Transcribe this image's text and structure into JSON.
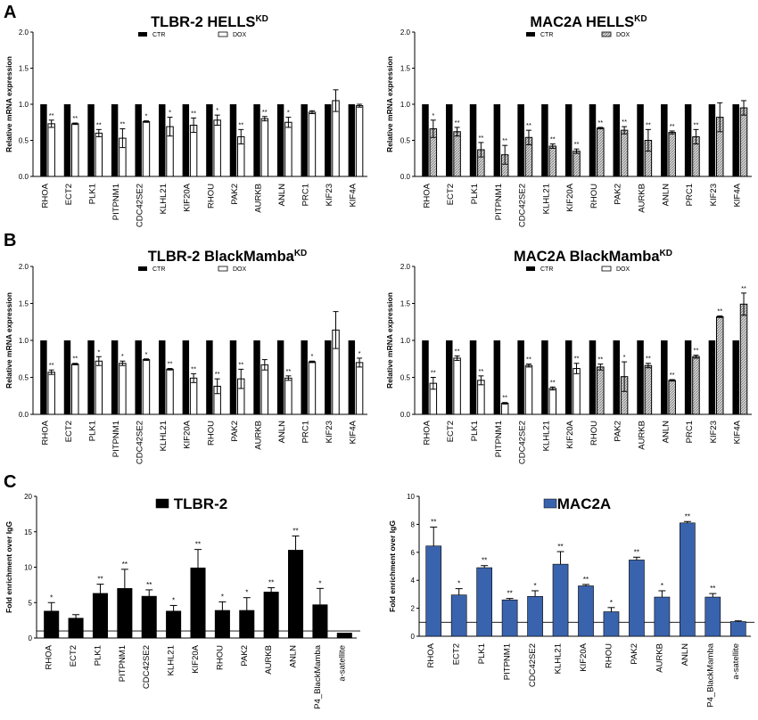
{
  "panel_letters": [
    "A",
    "B",
    "C"
  ],
  "chart_data": [
    {
      "id": "tlbr2_hells",
      "type": "bar",
      "title": "TLBR-2 HELLS",
      "title_sup": "KD",
      "ylabel": "Relative mRNA expression",
      "ylim": [
        0,
        2.0
      ],
      "yticks": [
        "0.0",
        "0.5",
        "1.0",
        "1.5",
        "2.0"
      ],
      "legend": [
        "CTR",
        "DOX"
      ],
      "categories": [
        "RHOA",
        "ECT2",
        "PLK1",
        "PITPNM1",
        "CDC42SE2",
        "KLHL21",
        "KIF20A",
        "RHOU",
        "PAK2",
        "AURKB",
        "ANLN",
        "PRC1",
        "KIF23",
        "KIF4A"
      ],
      "series": [
        {
          "name": "CTR",
          "values": [
            1,
            1,
            1,
            1,
            1,
            1,
            1,
            1,
            1,
            1,
            1,
            1,
            1,
            1
          ]
        },
        {
          "name": "DOX",
          "values": [
            0.73,
            0.73,
            0.6,
            0.53,
            0.76,
            0.69,
            0.71,
            0.78,
            0.55,
            0.8,
            0.75,
            0.89,
            1.05,
            0.98
          ],
          "errors": [
            0.05,
            0.01,
            0.05,
            0.13,
            0.01,
            0.13,
            0.1,
            0.07,
            0.1,
            0.03,
            0.07,
            0.02,
            0.15,
            0.02
          ]
        }
      ],
      "significance": [
        "**",
        "**",
        "**",
        "**",
        "*",
        "*",
        "**",
        "*",
        "**",
        "**",
        "*",
        "",
        "",
        ""
      ]
    },
    {
      "id": "mac2a_hells",
      "type": "bar",
      "title": "MAC2A HELLS",
      "title_sup": "KD",
      "ylabel": "Relative mRNA expression",
      "ylim": [
        0,
        2.0
      ],
      "yticks": [
        "0.0",
        "0.5",
        "1.0",
        "1.5",
        "2.0"
      ],
      "legend": [
        "CTR",
        "DOX"
      ],
      "categories": [
        "RHOA",
        "ECT2",
        "PLK1",
        "PITPNM1",
        "CDC42SE2",
        "KLHL21",
        "KIF20A",
        "RHOU",
        "PAK2",
        "AURKB",
        "ANLN",
        "PRC1",
        "KIF23",
        "KIF4A"
      ],
      "series": [
        {
          "name": "CTR",
          "values": [
            1,
            1,
            1,
            1,
            1,
            1,
            1,
            1,
            1,
            1,
            1,
            1,
            1,
            1
          ]
        },
        {
          "name": "DOX",
          "values": [
            0.66,
            0.62,
            0.37,
            0.3,
            0.54,
            0.42,
            0.35,
            0.67,
            0.64,
            0.5,
            0.61,
            0.55,
            0.82,
            0.95
          ],
          "errors": [
            0.12,
            0.06,
            0.1,
            0.13,
            0.1,
            0.03,
            0.03,
            0.01,
            0.05,
            0.15,
            0.02,
            0.1,
            0.2,
            0.1
          ]
        }
      ],
      "significance": [
        "*",
        "**",
        "**",
        "**",
        "**",
        "**",
        "**",
        "**",
        "**",
        "**",
        "**",
        "**",
        "",
        ""
      ]
    },
    {
      "id": "tlbr2_blackmamba",
      "type": "bar",
      "title": "TLBR-2 BlackMamba",
      "title_sup": "KD",
      "ylabel": "Relative mRNA expression",
      "ylim": [
        0,
        2.0
      ],
      "yticks": [
        "0.0",
        "0.5",
        "1.0",
        "1.5",
        "2.0"
      ],
      "legend": [
        "CTR",
        "DOX"
      ],
      "categories": [
        "RHOA",
        "ECT2",
        "PLK1",
        "PITPNM1",
        "CDC42SE2",
        "KLHL21",
        "KIF20A",
        "RHOU",
        "PAK2",
        "AURKB",
        "ANLN",
        "PRC1",
        "KIF23",
        "KIF4A"
      ],
      "series": [
        {
          "name": "CTR",
          "values": [
            1,
            1,
            1,
            1,
            1,
            1,
            1,
            1,
            1,
            1,
            1,
            1,
            1,
            1
          ]
        },
        {
          "name": "DOX",
          "values": [
            0.57,
            0.68,
            0.72,
            0.69,
            0.74,
            0.61,
            0.49,
            0.38,
            0.48,
            0.67,
            0.49,
            0.71,
            1.14,
            0.7
          ],
          "errors": [
            0.03,
            0.01,
            0.06,
            0.03,
            0.01,
            0.01,
            0.06,
            0.1,
            0.13,
            0.07,
            0.03,
            0.01,
            0.25,
            0.06
          ]
        }
      ],
      "significance": [
        "**",
        "**",
        "*",
        "*",
        "*",
        "**",
        "**",
        "**",
        "**",
        "",
        "**",
        "*",
        "",
        "*"
      ]
    },
    {
      "id": "mac2a_blackmamba",
      "type": "bar",
      "title": "MAC2A BlackMamba",
      "title_sup": "KD",
      "ylabel": "Relative mRNA expression",
      "ylim": [
        0,
        2.0
      ],
      "yticks": [
        "0.0",
        "0.5",
        "1.0",
        "1.5",
        "2.0"
      ],
      "legend": [
        "CTR",
        "DOX"
      ],
      "categories": [
        "RHOA",
        "ECT2",
        "PLK1",
        "PITPNM1",
        "CDC42SE2",
        "KLHL21",
        "KIF20A",
        "RHOU",
        "PAK2",
        "AURKB",
        "ANLN",
        "PRC1",
        "KIF23",
        "KIF4A"
      ],
      "series": [
        {
          "name": "CTR",
          "values": [
            1,
            1,
            1,
            1,
            1,
            1,
            1,
            1,
            1,
            1,
            1,
            1,
            1,
            1
          ]
        },
        {
          "name": "DOX",
          "values": [
            0.42,
            0.76,
            0.46,
            0.15,
            0.66,
            0.35,
            0.62,
            0.64,
            0.51,
            0.66,
            0.46,
            0.78,
            1.32,
            1.49
          ],
          "errors": [
            0.08,
            0.03,
            0.06,
            0.01,
            0.02,
            0.02,
            0.07,
            0.04,
            0.2,
            0.03,
            0.01,
            0.02,
            0.01,
            0.15
          ]
        }
      ],
      "significance": [
        "**",
        "**",
        "**",
        "**",
        "**",
        "**",
        "**",
        "**",
        "*",
        "**",
        "**",
        "**",
        "**",
        "**"
      ]
    },
    {
      "id": "tlbr2_chip",
      "type": "bar",
      "title": "TLBR-2",
      "ylabel": "Fold enrichment over IgG",
      "ylim": [
        0,
        20
      ],
      "yticks": [
        "0",
        "5",
        "10",
        "15",
        "20"
      ],
      "reference_line": 1,
      "categories": [
        "RHOA",
        "ECT2",
        "PLK1",
        "PITPNM1",
        "CDC42SE2",
        "KLHL21",
        "KIF20A",
        "RHOU",
        "PAK2",
        "AURKB",
        "ANLN",
        "P4_BlackMamba",
        "a-satellite"
      ],
      "series": [
        {
          "name": "TLBR-2",
          "values": [
            3.8,
            2.8,
            6.3,
            7.0,
            5.9,
            3.8,
            9.9,
            3.9,
            3.9,
            6.5,
            12.4,
            4.7,
            0.7
          ],
          "errors": [
            1.2,
            0.5,
            1.3,
            2.7,
            0.9,
            0.8,
            2.6,
            1.2,
            1.8,
            0.6,
            2.0,
            2.3,
            0
          ]
        }
      ],
      "significance": [
        "*",
        "",
        "**",
        "**",
        "**",
        "*",
        "**",
        "*",
        "*",
        "**",
        "**",
        "*",
        ""
      ]
    },
    {
      "id": "mac2a_chip",
      "type": "bar",
      "title": "MAC2A",
      "ylabel": "Fold enrichment over IgG",
      "ylim": [
        0,
        10
      ],
      "yticks": [
        "0",
        "2",
        "4",
        "6",
        "8",
        "10"
      ],
      "reference_line": 1,
      "categories": [
        "RHOA",
        "ECT2",
        "PLK1",
        "PITPNM1",
        "CDC42SE2",
        "KLHL21",
        "KIF20A",
        "RHOU",
        "PAK2",
        "AURKB",
        "ANLN",
        "P4_BlackMamba",
        "a-satellite"
      ],
      "series": [
        {
          "name": "MAC2A",
          "values": [
            6.45,
            2.95,
            4.9,
            2.6,
            2.85,
            5.15,
            3.6,
            1.75,
            5.45,
            2.8,
            8.1,
            2.8,
            1.05
          ],
          "errors": [
            1.35,
            0.45,
            0.15,
            0.1,
            0.4,
            0.9,
            0.1,
            0.3,
            0.2,
            0.45,
            0.1,
            0.25,
            0.05
          ]
        }
      ],
      "significance": [
        "**",
        "*",
        "**",
        "**",
        "*",
        "**",
        "**",
        "*",
        "**",
        "*",
        "**",
        "**",
        ""
      ]
    }
  ],
  "colors": {
    "ctr": "#000000",
    "dox_white": "#ffffff",
    "dox_hatched": "#c8c8c8",
    "chip_tlbr2": "#000000",
    "chip_mac2a": "#3a63ad"
  }
}
